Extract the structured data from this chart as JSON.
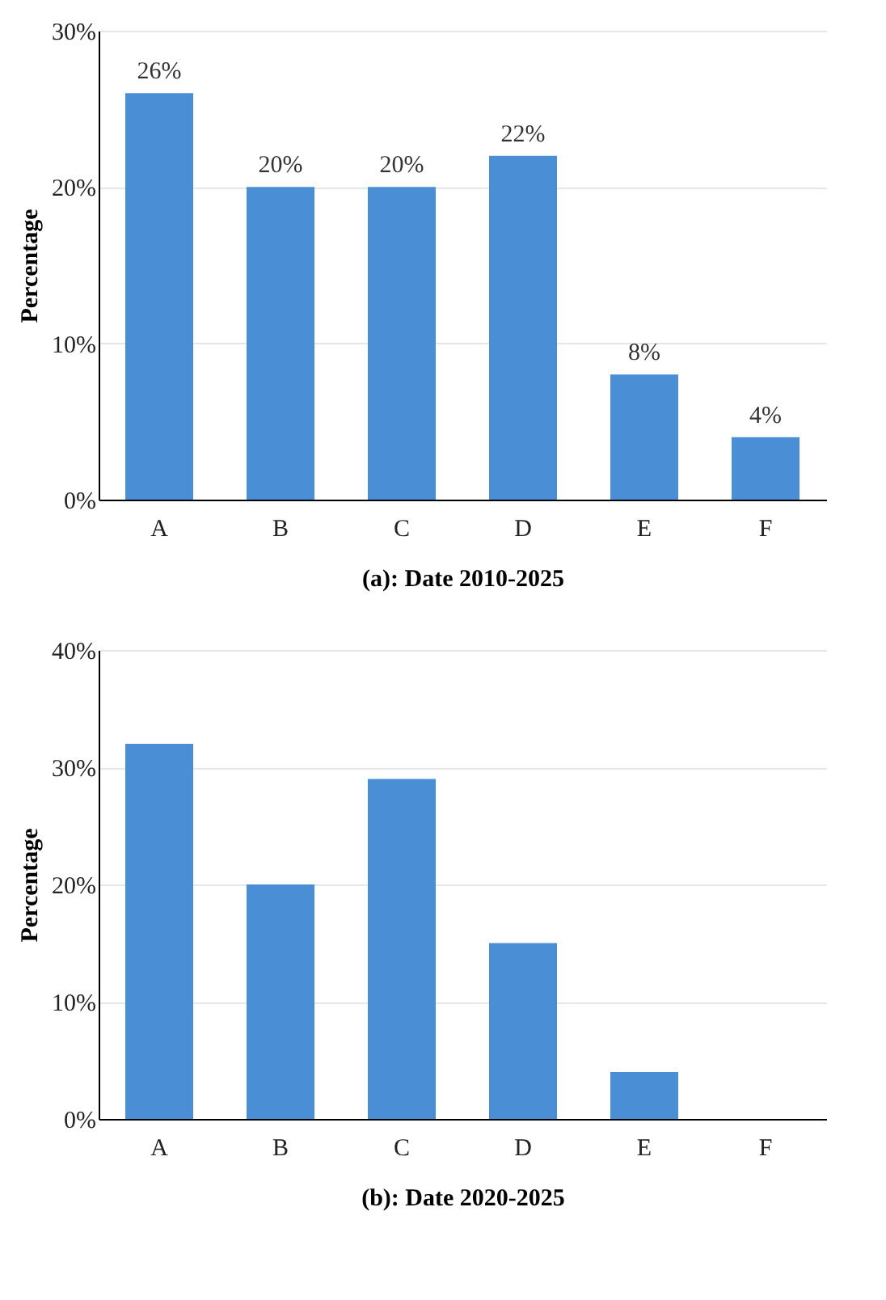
{
  "chart_data": [
    {
      "type": "bar",
      "xlabel": "(a): Date 2010-2025",
      "ylabel": "Percentage",
      "categories": [
        "A",
        "B",
        "C",
        "D",
        "E",
        "F"
      ],
      "values": [
        26,
        20,
        20,
        22,
        8,
        4
      ],
      "color": "#4a8fd6",
      "ylim": [
        0,
        30
      ],
      "yticks": [
        {
          "value": 0,
          "label": "0%"
        },
        {
          "value": 10,
          "label": "10%"
        },
        {
          "value": 20,
          "label": "20%"
        },
        {
          "value": 30,
          "label": "30%"
        }
      ],
      "grid": "y",
      "data_labels": true,
      "value_labels": [
        "26%",
        "20%",
        "20%",
        "22%",
        "8%",
        "4%"
      ]
    },
    {
      "type": "bar",
      "xlabel": "(b): Date 2020-2025",
      "ylabel": "Percentage",
      "categories": [
        "A",
        "B",
        "C",
        "D",
        "E",
        "F"
      ],
      "values": [
        32,
        20,
        29,
        15,
        4,
        0
      ],
      "color": "#4a8fd6",
      "ylim": [
        0,
        40
      ],
      "yticks": [
        {
          "value": 0,
          "label": "0%"
        },
        {
          "value": 10,
          "label": "10%"
        },
        {
          "value": 20,
          "label": "20%"
        },
        {
          "value": 30,
          "label": "30%"
        },
        {
          "value": 40,
          "label": "40%"
        }
      ],
      "grid": "y"
    }
  ]
}
